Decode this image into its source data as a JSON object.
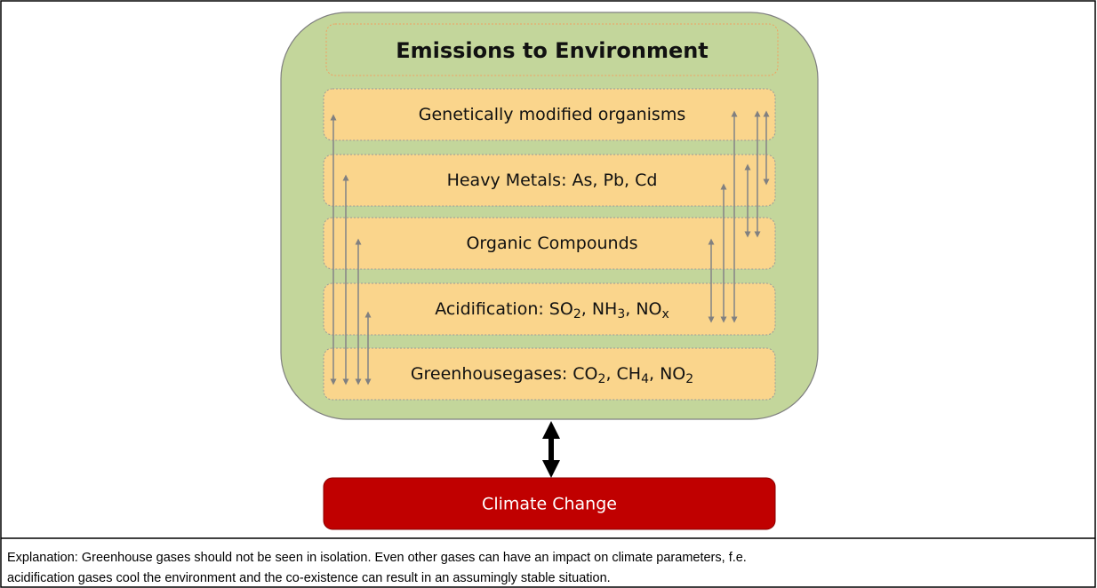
{
  "title": "Emissions to Environment",
  "boxes": [
    {
      "parts": [
        "Genetically modified organisms"
      ]
    },
    {
      "parts": [
        "Heavy Metals: As, Pb, Cd"
      ]
    },
    {
      "parts": [
        "Organic Compounds"
      ]
    },
    {
      "parts": [
        "Acidification: SO",
        "2",
        ", NH",
        "3",
        ", NO",
        "x"
      ]
    },
    {
      "parts": [
        "Greenhousegases: CO",
        "2",
        ", CH",
        "4",
        ", NO",
        "2"
      ]
    }
  ],
  "result": "Climate Change",
  "explanation": [
    "Explanation: Greenhouse gases should not be seen in isolation. Even other gases can have an impact on climate parameters, f.e.",
    "acidification gases cool the environment and the co-existence can result in an assumingly stable situation."
  ]
}
